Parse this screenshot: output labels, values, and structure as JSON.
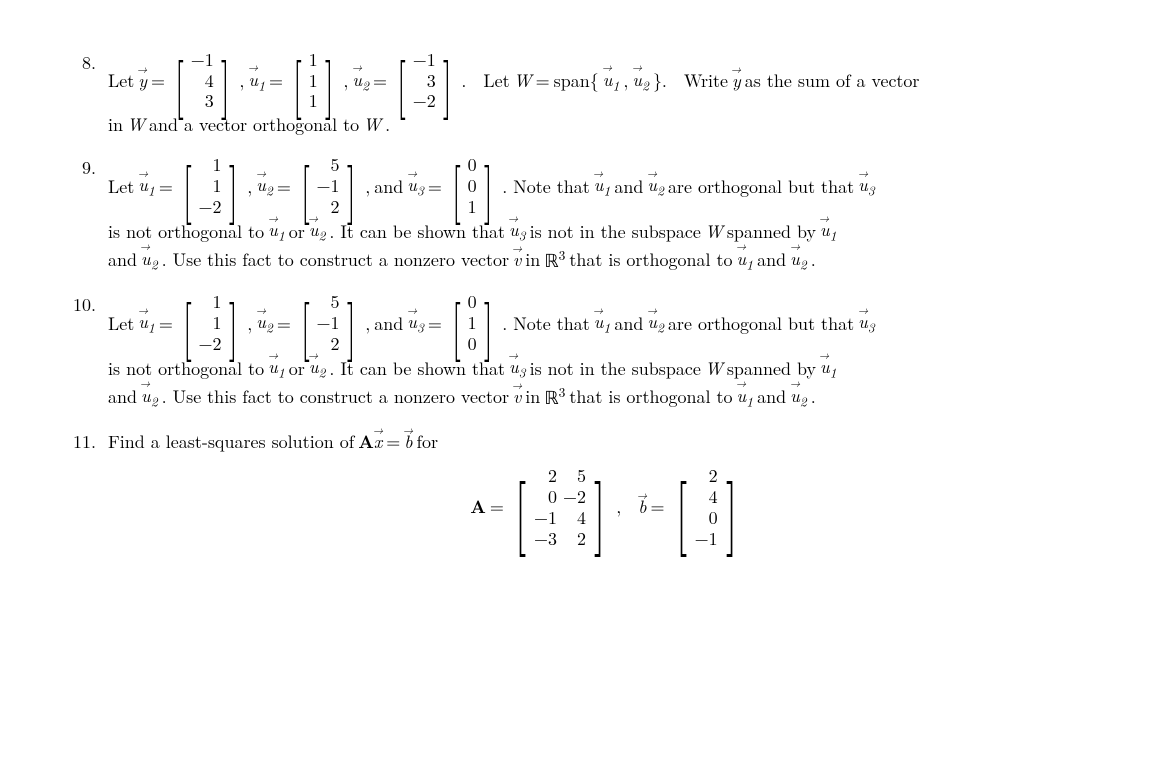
{
  "p8": {
    "num": "8.",
    "let": "Let",
    "y_eq": "=",
    "y": [
      "−1",
      "4",
      "3"
    ],
    "comma": ",",
    "u1_eq": "=",
    "u1": [
      "1",
      "1",
      "1"
    ],
    "u2_eq": "=",
    "u2": [
      "−1",
      "3",
      "−2"
    ],
    "period": ".",
    "letW": "Let",
    "W": "W",
    "eq": "=",
    "span": "span{",
    "span_close": "}.",
    "write": "Write",
    "as_sum": "as the sum of a vector",
    "line2": "in",
    "W2": "W",
    "and_ortho": "and a vector orthogonal to",
    "W3": "W",
    "dot": "."
  },
  "p9": {
    "num": "9.",
    "let": "Let",
    "u1": [
      "1",
      "1",
      "−2"
    ],
    "u2": [
      "5",
      "−1",
      "2"
    ],
    "u3": [
      "0",
      "0",
      "1"
    ],
    "and": "and",
    "note": ". Note that",
    "and2": "and",
    "ortho_but": "are orthogonal but that",
    "line2a": "is not orthogonal to",
    "or": "or",
    "line2b": ". It can be shown that",
    "line2c": "is not in the subspace",
    "W": "W",
    "spanned": "spanned by",
    "line3a": "and",
    "line3b": ". Use this fact to construct a nonzero vector",
    "in": "in",
    "R3": "ℝ",
    "three": "3",
    "ortho_to": "that is orthogonal to",
    "and3": "and",
    "dot": "."
  },
  "p10": {
    "num": "10.",
    "u1": [
      "1",
      "1",
      "−2"
    ],
    "u2": [
      "5",
      "−1",
      "2"
    ],
    "u3": [
      "0",
      "1",
      "0"
    ]
  },
  "p11": {
    "num": "11.",
    "text": "Find a least-squares solution of",
    "eq": "=",
    "for": "for",
    "A_label": "A",
    "A_eq": "=",
    "A_c1": [
      "2",
      "0",
      "−1",
      "−3"
    ],
    "A_c2": [
      "5",
      "−2",
      "4",
      "2"
    ],
    "comma": ",",
    "b_eq": "=",
    "b": [
      "2",
      "4",
      "0",
      "−1"
    ]
  },
  "sym": {
    "y": "y",
    "u": "u",
    "v": "v",
    "b": "b",
    "x": "x",
    "one": "1",
    "two": "2",
    "three_sub": "3",
    "comma_sp": ", "
  }
}
